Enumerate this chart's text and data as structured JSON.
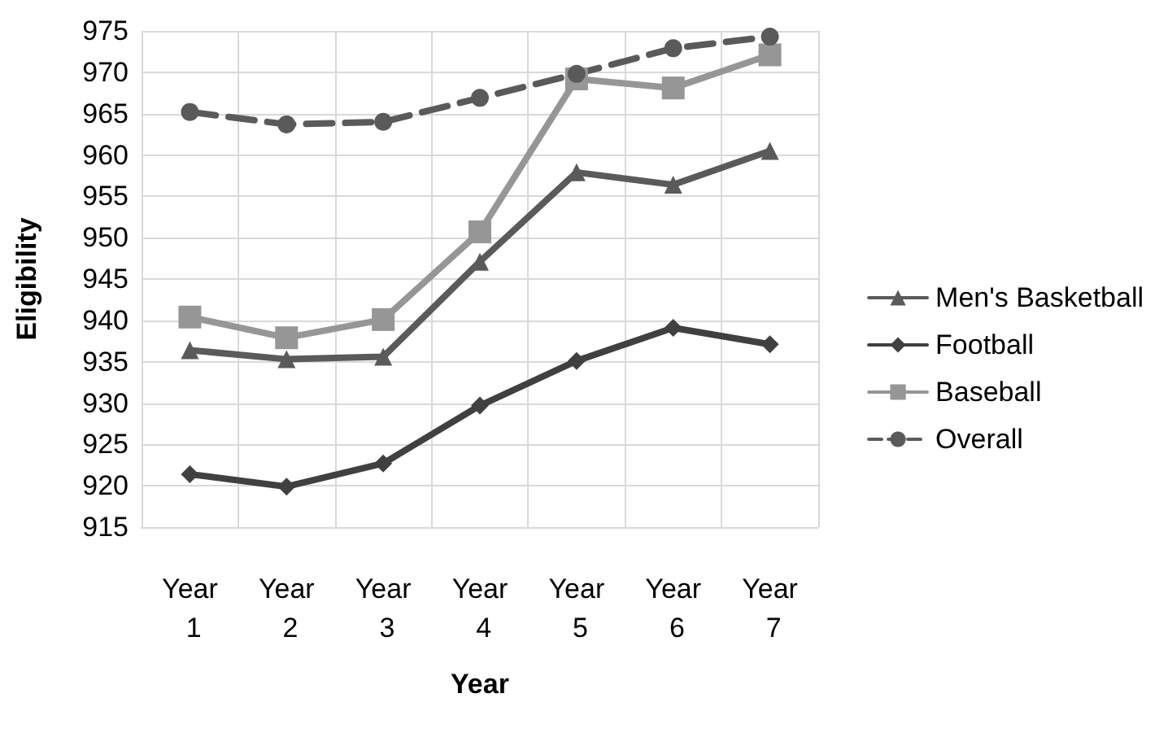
{
  "chart_data": {
    "type": "line",
    "xlabel": "Year",
    "ylabel": "Eligibility",
    "categories": [
      "Year 1",
      "Year 2",
      "Year 3",
      "Year 4",
      "Year 5",
      "Year 6",
      "Year 7"
    ],
    "series": [
      {
        "name": "Men's Basketball",
        "color": "#5a5a5a",
        "marker": "triangle",
        "line_style": "solid",
        "values": [
          936.4,
          935.3,
          935.6,
          947.1,
          957.9,
          956.4,
          960.5
        ]
      },
      {
        "name": "Football",
        "color": "#404040",
        "marker": "diamond",
        "line_style": "solid",
        "values": [
          921.4,
          919.9,
          922.7,
          929.7,
          935.1,
          939.1,
          937.1
        ]
      },
      {
        "name": "Baseball",
        "color": "#969696",
        "marker": "square",
        "line_style": "solid",
        "values": [
          940.4,
          937.9,
          940.1,
          950.7,
          969.2,
          968.1,
          972.1
        ]
      },
      {
        "name": "Overall",
        "color": "#5a5a5a",
        "marker": "circle",
        "line_style": "dashed",
        "values": [
          965.2,
          963.7,
          964.0,
          966.9,
          969.8,
          972.9,
          974.3
        ]
      }
    ],
    "ylim": [
      915,
      975
    ],
    "yticks": [
      915,
      920,
      925,
      930,
      935,
      940,
      945,
      950,
      955,
      960,
      965,
      970,
      975
    ],
    "grid": true,
    "legend": "right"
  }
}
